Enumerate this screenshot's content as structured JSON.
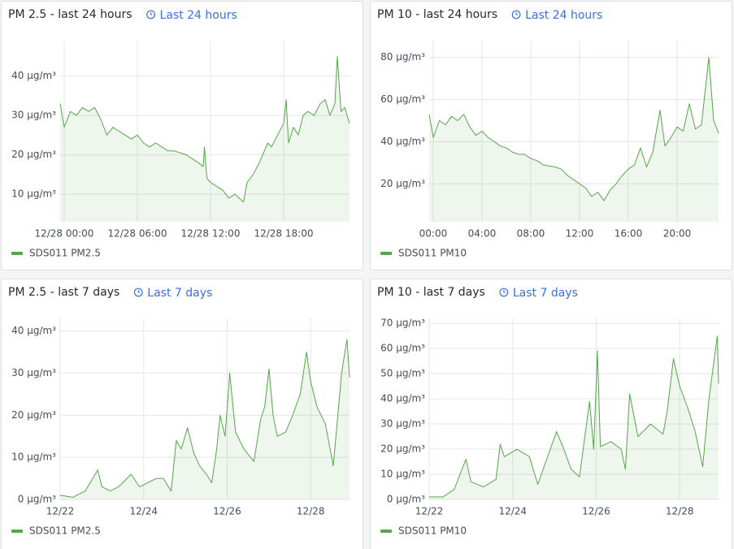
{
  "chart_data": [
    {
      "type": "line",
      "title": "PM 2.5 - last 24 hours",
      "time_range": "Last 24 hours",
      "x": [
        -0.33,
        0,
        0.5,
        1,
        1.5,
        2,
        2.5,
        3,
        3.5,
        4,
        4.5,
        5,
        5.5,
        6,
        6.5,
        7,
        7.5,
        8,
        8.5,
        9,
        10,
        10.5,
        11,
        11.4,
        11.5,
        11.7,
        12,
        12.5,
        13,
        13.5,
        14,
        14.7,
        15,
        15.5,
        16,
        16.7,
        17,
        17.5,
        18,
        18.2,
        18.4,
        18.8,
        19.2,
        19.6,
        20,
        20.5,
        21,
        21.4,
        21.8,
        22.2,
        22.4,
        22.7,
        23,
        23.4
      ],
      "series": [
        {
          "name": "SDS011 PM2.5",
          "color": "#56a64b",
          "values": [
            33,
            27,
            31,
            30,
            32,
            31,
            32,
            29,
            25,
            27,
            26,
            25,
            24,
            25,
            23,
            22,
            23,
            22,
            21,
            21,
            20,
            19,
            18,
            17,
            22,
            14,
            13,
            12,
            11,
            9,
            10,
            8,
            13,
            15,
            18,
            23,
            22,
            25,
            28,
            34,
            23,
            27,
            25,
            30,
            31,
            30,
            33,
            34,
            30,
            33,
            45,
            31,
            32,
            28
          ]
        }
      ],
      "xlim": [
        -0.33,
        23.4
      ],
      "xticks": [
        {
          "value": 0,
          "label": "12/28 00:00"
        },
        {
          "value": 6,
          "label": "12/28 06:00"
        },
        {
          "value": 12,
          "label": "12/28 12:00"
        },
        {
          "value": 18,
          "label": "12/28 18:00"
        }
      ],
      "ylim": [
        3,
        49
      ],
      "yticks": [
        {
          "value": 10,
          "label": "10 µg/m³"
        },
        {
          "value": 20,
          "label": "20 µg/m³"
        },
        {
          "value": 30,
          "label": "30 µg/m³"
        },
        {
          "value": 40,
          "label": "40 µg/m³"
        }
      ],
      "grid": true
    },
    {
      "type": "line",
      "title": "PM 10 - last 24 hours",
      "time_range": "Last 24 hours",
      "x": [
        -0.33,
        0,
        0.5,
        1,
        1.5,
        2,
        2.5,
        3,
        3.5,
        4,
        4.5,
        5,
        5.5,
        6,
        6.5,
        7,
        7.5,
        8,
        8.5,
        9,
        10,
        10.5,
        11,
        11.5,
        12,
        12.5,
        13,
        13.5,
        14,
        14.5,
        15,
        15.5,
        16,
        16.5,
        17,
        17.5,
        18,
        18.6,
        19,
        19.5,
        20,
        20.5,
        21,
        21.5,
        22,
        22.6,
        23,
        23.4
      ],
      "series": [
        {
          "name": "SDS011 PM10",
          "color": "#56a64b",
          "values": [
            53,
            42,
            50,
            48,
            52,
            50,
            53,
            47,
            43,
            45,
            42,
            40,
            38,
            37,
            35,
            34,
            34,
            32,
            31,
            29,
            28,
            27,
            24,
            22,
            20,
            18,
            14,
            16,
            12,
            17,
            20,
            24,
            27,
            29,
            37,
            28,
            35,
            55,
            38,
            42,
            47,
            45,
            58,
            46,
            48,
            80,
            50,
            44
          ]
        }
      ],
      "xlim": [
        -0.33,
        23.4
      ],
      "xticks": [
        {
          "value": 0,
          "label": "00:00"
        },
        {
          "value": 4,
          "label": "04:00"
        },
        {
          "value": 8,
          "label": "08:00"
        },
        {
          "value": 12,
          "label": "12:00"
        },
        {
          "value": 16,
          "label": "16:00"
        },
        {
          "value": 20,
          "label": "20:00"
        }
      ],
      "ylim": [
        2,
        88
      ],
      "yticks": [
        {
          "value": 20,
          "label": "20 µg/m³"
        },
        {
          "value": 40,
          "label": "40 µg/m³"
        },
        {
          "value": 60,
          "label": "60 µg/m³"
        },
        {
          "value": 80,
          "label": "80 µg/m³"
        }
      ],
      "grid": true
    },
    {
      "type": "line",
      "title": "PM 2.5 - last 7 days",
      "time_range": "Last 7 days",
      "x": [
        0,
        0.3,
        0.6,
        0.9,
        1.0,
        1.2,
        1.4,
        1.7,
        1.9,
        2.1,
        2.3,
        2.47,
        2.66,
        2.78,
        2.9,
        3.05,
        3.2,
        3.34,
        3.5,
        3.63,
        3.75,
        3.83,
        3.95,
        4.06,
        4.2,
        4.4,
        4.64,
        4.8,
        4.9,
        5.0,
        5.1,
        5.2,
        5.4,
        5.57,
        5.75,
        5.9,
        6.0,
        6.15,
        6.35,
        6.54,
        6.65,
        6.74,
        6.87,
        6.93
      ],
      "series": [
        {
          "name": "SDS011 PM2.5",
          "color": "#56a64b",
          "values": [
            1,
            0.5,
            2,
            7,
            3,
            2,
            3,
            6,
            3,
            4,
            5,
            5,
            2,
            14,
            12,
            17,
            11,
            8,
            6,
            4,
            12,
            20,
            15,
            30,
            16,
            12,
            9,
            19,
            22,
            31,
            20,
            15,
            16,
            20,
            25,
            35,
            28,
            22,
            18,
            8,
            20,
            30,
            38,
            29
          ]
        }
      ],
      "xlim": [
        0,
        6.93
      ],
      "xticks": [
        {
          "value": 0,
          "label": "12/22"
        },
        {
          "value": 2,
          "label": "12/24"
        },
        {
          "value": 4,
          "label": "12/26"
        },
        {
          "value": 6,
          "label": "12/28"
        }
      ],
      "ylim": [
        0,
        43
      ],
      "yticks": [
        {
          "value": 0,
          "label": "0 µg/m³"
        },
        {
          "value": 10,
          "label": "10 µg/m³"
        },
        {
          "value": 20,
          "label": "20 µg/m³"
        },
        {
          "value": 30,
          "label": "30 µg/m³"
        },
        {
          "value": 40,
          "label": "40 µg/m³"
        }
      ],
      "grid": true
    },
    {
      "type": "line",
      "title": "PM 10 - last 7 days",
      "time_range": "Last 7 days",
      "x": [
        0,
        0.33,
        0.6,
        0.88,
        1.0,
        1.3,
        1.6,
        1.7,
        1.8,
        2.1,
        2.4,
        2.6,
        2.9,
        3.05,
        3.2,
        3.4,
        3.6,
        3.84,
        3.94,
        4.03,
        4.1,
        4.35,
        4.6,
        4.7,
        4.8,
        5.0,
        5.3,
        5.6,
        5.7,
        5.85,
        6.0,
        6.2,
        6.37,
        6.55,
        6.7,
        6.9,
        6.93
      ],
      "series": [
        {
          "name": "SDS011 PM10",
          "color": "#56a64b",
          "values": [
            1,
            1,
            4,
            16,
            7,
            5,
            8,
            22,
            17,
            20,
            17,
            6,
            20,
            27,
            21,
            12,
            9,
            39,
            20,
            59,
            21,
            23,
            20,
            12,
            42,
            25,
            30,
            26,
            35,
            56,
            45,
            36,
            27,
            13,
            40,
            65,
            46
          ]
        }
      ],
      "xlim": [
        0,
        6.93
      ],
      "xticks": [
        {
          "value": 0,
          "label": "12/22"
        },
        {
          "value": 2,
          "label": "12/24"
        },
        {
          "value": 4,
          "label": "12/26"
        },
        {
          "value": 6,
          "label": "12/28"
        }
      ],
      "ylim": [
        0,
        72
      ],
      "yticks": [
        {
          "value": 0,
          "label": "0 µg/m³"
        },
        {
          "value": 10,
          "label": "10 µg/m³"
        },
        {
          "value": 20,
          "label": "20 µg/m³"
        },
        {
          "value": 30,
          "label": "30 µg/m³"
        },
        {
          "value": 40,
          "label": "40 µg/m³"
        },
        {
          "value": 50,
          "label": "50 µg/m³"
        },
        {
          "value": 60,
          "label": "60 µg/m³"
        },
        {
          "value": 70,
          "label": "70 µg/m³"
        }
      ],
      "grid": true
    }
  ]
}
